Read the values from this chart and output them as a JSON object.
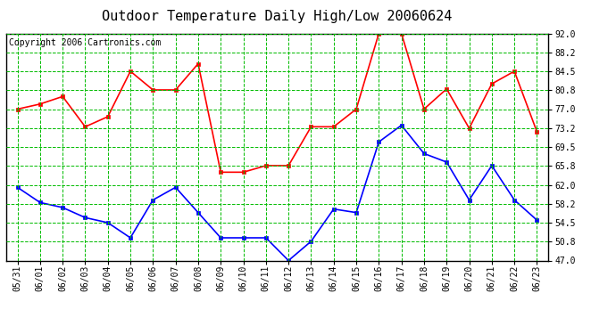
{
  "title": "Outdoor Temperature Daily High/Low 20060624",
  "copyright": "Copyright 2006 Cartronics.com",
  "dates": [
    "05/31",
    "06/01",
    "06/02",
    "06/03",
    "06/04",
    "06/05",
    "06/06",
    "06/07",
    "06/08",
    "06/09",
    "06/10",
    "06/11",
    "06/12",
    "06/13",
    "06/14",
    "06/15",
    "06/16",
    "06/17",
    "06/18",
    "06/19",
    "06/20",
    "06/21",
    "06/22",
    "06/23"
  ],
  "high_temps": [
    77.0,
    78.0,
    79.5,
    73.5,
    75.5,
    84.5,
    80.8,
    80.8,
    86.0,
    64.5,
    64.5,
    65.8,
    65.8,
    73.5,
    73.5,
    77.0,
    92.0,
    92.0,
    77.0,
    81.0,
    73.2,
    82.0,
    84.5,
    72.5
  ],
  "low_temps": [
    61.5,
    58.5,
    57.5,
    55.5,
    54.5,
    51.5,
    59.0,
    61.5,
    56.5,
    51.5,
    51.5,
    51.5,
    47.0,
    50.8,
    57.2,
    56.5,
    70.5,
    73.8,
    68.2,
    66.5,
    59.0,
    65.8,
    59.0,
    55.0
  ],
  "high_color": "#ff0000",
  "low_color": "#0000ff",
  "bg_color": "#ffffff",
  "plot_bg_color": "#ffffff",
  "grid_color": "#00bb00",
  "border_color": "#000000",
  "yticks": [
    47.0,
    50.8,
    54.5,
    58.2,
    62.0,
    65.8,
    69.5,
    73.2,
    77.0,
    80.8,
    84.5,
    88.2,
    92.0
  ],
  "ymin": 47.0,
  "ymax": 92.0,
  "title_fontsize": 11,
  "copyright_fontsize": 7,
  "tick_fontsize": 7,
  "marker": "s",
  "markersize": 3,
  "linewidth": 1.2
}
